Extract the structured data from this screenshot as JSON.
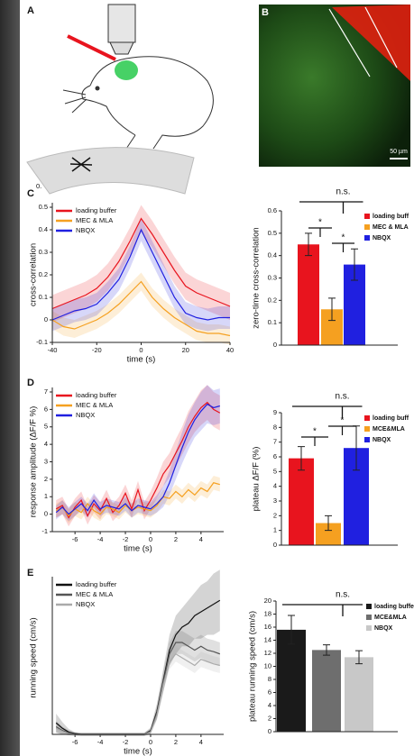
{
  "panel_labels": [
    "A",
    "B",
    "C",
    "D",
    "E"
  ],
  "scale_bar": "50 µm",
  "stray_text": "0.",
  "chart_data": [
    {
      "type": "line",
      "xlabel": "time (s)",
      "ylabel": "cross-correlation",
      "x": [
        -40,
        -35,
        -30,
        -25,
        -20,
        -15,
        -10,
        -5,
        0,
        5,
        10,
        15,
        20,
        25,
        30,
        35,
        40
      ],
      "xlim": [
        -40,
        40
      ],
      "xticks": [
        -40,
        -20,
        0,
        20,
        40
      ],
      "ylim": [
        -0.1,
        0.5
      ],
      "yticks": [
        -0.1,
        0,
        0.1,
        0.2,
        0.3,
        0.4,
        0.5
      ],
      "series": [
        {
          "name": "loading buffer",
          "color": "#e8141e",
          "values": [
            0.05,
            0.07,
            0.09,
            0.11,
            0.14,
            0.19,
            0.26,
            0.35,
            0.45,
            0.38,
            0.3,
            0.22,
            0.15,
            0.12,
            0.1,
            0.08,
            0.06
          ],
          "error": [
            0.06,
            0.06,
            0.06,
            0.06,
            0.06,
            0.06,
            0.06,
            0.06,
            0.06,
            0.06,
            0.06,
            0.06,
            0.06,
            0.06,
            0.06,
            0.06,
            0.06
          ]
        },
        {
          "name": "MEC & MLA",
          "color": "#f5a020",
          "values": [
            0.0,
            -0.03,
            -0.04,
            -0.02,
            0.0,
            0.03,
            0.07,
            0.12,
            0.17,
            0.1,
            0.05,
            0.01,
            -0.02,
            -0.05,
            -0.06,
            -0.06,
            -0.07
          ],
          "error": [
            0.04,
            0.04,
            0.04,
            0.04,
            0.04,
            0.04,
            0.04,
            0.04,
            0.04,
            0.04,
            0.04,
            0.04,
            0.04,
            0.04,
            0.04,
            0.04,
            0.04
          ]
        },
        {
          "name": "NBQX",
          "color": "#2020e0",
          "values": [
            0.0,
            0.02,
            0.04,
            0.05,
            0.07,
            0.12,
            0.18,
            0.28,
            0.4,
            0.3,
            0.2,
            0.1,
            0.03,
            0.01,
            0.0,
            0.01,
            0.01
          ],
          "error": [
            0.05,
            0.05,
            0.05,
            0.05,
            0.05,
            0.05,
            0.05,
            0.05,
            0.05,
            0.05,
            0.05,
            0.05,
            0.05,
            0.05,
            0.05,
            0.05,
            0.05
          ]
        }
      ]
    },
    {
      "type": "bar",
      "ylabel": "zero-time cross-correlation",
      "categories": [
        "loading buff",
        "MEC & MLA",
        "NBQX"
      ],
      "colors": [
        "#e8141e",
        "#f5a020",
        "#2020e0"
      ],
      "values": [
        0.45,
        0.16,
        0.36
      ],
      "error": [
        0.05,
        0.05,
        0.07
      ],
      "ylim": [
        0,
        0.6
      ],
      "yticks": [
        0,
        0.1,
        0.2,
        0.3,
        0.4,
        0.5,
        0.6
      ],
      "annotations": [
        "n.s.",
        "*",
        "*"
      ]
    },
    {
      "type": "line",
      "xlabel": "time (s)",
      "ylabel": "response amplitude (ΔF/F %)",
      "x": [
        -7.5,
        -7,
        -6.5,
        -6,
        -5.5,
        -5,
        -4.5,
        -4,
        -3.5,
        -3,
        -2.5,
        -2,
        -1.5,
        -1,
        -0.5,
        0,
        0.5,
        1,
        1.5,
        2,
        2.5,
        3,
        3.5,
        4,
        4.5,
        5,
        5.5
      ],
      "xlim": [
        -7.8,
        5.8
      ],
      "xticks": [
        -6,
        -4,
        -2,
        0,
        2,
        4
      ],
      "ylim": [
        -1,
        7
      ],
      "yticks": [
        -1,
        0,
        1,
        2,
        3,
        4,
        5,
        6,
        7
      ],
      "series": [
        {
          "name": "loading buffer",
          "color": "#e8141e",
          "values": [
            0.3,
            0.5,
            -0.2,
            0.4,
            0.8,
            -0.1,
            0.6,
            0.2,
            0.9,
            0.1,
            0.5,
            1.2,
            0.3,
            1.4,
            0.2,
            0.8,
            1.5,
            2.3,
            2.8,
            3.5,
            4.2,
            5.0,
            5.6,
            6.1,
            6.4,
            6.0,
            5.8
          ],
          "error": [
            0.5,
            0.5,
            0.5,
            0.5,
            0.5,
            0.5,
            0.5,
            0.5,
            0.5,
            0.5,
            0.5,
            0.5,
            0.5,
            0.5,
            0.5,
            0.5,
            0.6,
            0.7,
            0.7,
            0.8,
            0.8,
            0.9,
            0.9,
            1.0,
            1.0,
            1.0,
            1.0
          ]
        },
        {
          "name": "MEC & MLA",
          "color": "#f5a020",
          "values": [
            0.2,
            0.4,
            -0.1,
            0.3,
            0.1,
            0.6,
            0.2,
            0.0,
            0.4,
            0.3,
            0.1,
            0.5,
            0.2,
            0.4,
            0.3,
            0.2,
            0.5,
            1.0,
            0.9,
            1.3,
            1.0,
            1.4,
            1.1,
            1.5,
            1.3,
            1.8,
            1.7
          ],
          "error": [
            0.4,
            0.4,
            0.4,
            0.4,
            0.4,
            0.4,
            0.4,
            0.4,
            0.4,
            0.4,
            0.4,
            0.4,
            0.4,
            0.4,
            0.4,
            0.4,
            0.4,
            0.4,
            0.4,
            0.4,
            0.4,
            0.4,
            0.4,
            0.4,
            0.4,
            0.4,
            0.4
          ]
        },
        {
          "name": "NBQX",
          "color": "#2020e0",
          "values": [
            0.1,
            0.4,
            0.0,
            0.3,
            0.6,
            0.2,
            0.8,
            0.3,
            0.5,
            0.4,
            0.3,
            0.6,
            0.2,
            0.5,
            0.4,
            0.3,
            0.6,
            1.0,
            1.8,
            2.8,
            3.8,
            4.7,
            5.4,
            5.9,
            6.3,
            6.1,
            6.2
          ],
          "error": [
            0.4,
            0.4,
            0.4,
            0.4,
            0.4,
            0.4,
            0.4,
            0.4,
            0.4,
            0.4,
            0.4,
            0.4,
            0.4,
            0.4,
            0.4,
            0.4,
            0.5,
            0.6,
            0.7,
            0.8,
            0.9,
            1.0,
            1.0,
            1.1,
            1.1,
            1.0,
            1.0
          ]
        }
      ]
    },
    {
      "type": "bar",
      "ylabel": "plateau ΔF/F (%)",
      "categories": [
        "loading buff",
        "MCE&MLA",
        "NBQX"
      ],
      "colors": [
        "#e8141e",
        "#f5a020",
        "#2020e0"
      ],
      "values": [
        5.9,
        1.5,
        6.6
      ],
      "error": [
        0.8,
        0.5,
        1.5
      ],
      "ylim": [
        0,
        9
      ],
      "yticks": [
        0,
        1,
        2,
        3,
        4,
        5,
        6,
        7,
        8,
        9
      ],
      "annotations": [
        "n.s.",
        "*",
        "*"
      ]
    },
    {
      "type": "line",
      "xlabel": "time (s)",
      "ylabel": "running speed (cm/s)",
      "x": [
        -7.5,
        -7,
        -6.5,
        -6,
        -5.5,
        -5,
        -4.5,
        -4,
        -3.5,
        -3,
        -2.5,
        -2,
        -1.5,
        -1,
        -0.5,
        0,
        0.5,
        1,
        1.5,
        2,
        2.5,
        3,
        3.5,
        4,
        4.5,
        5,
        5.5
      ],
      "xlim": [
        -7.8,
        5.8
      ],
      "xticks": [
        -6,
        -4,
        -2,
        0,
        2,
        4
      ],
      "ylim": [
        0,
        20
      ],
      "series": [
        {
          "name": "loading buffer",
          "color": "#111111",
          "values": [
            1.5,
            0.8,
            0.3,
            0.1,
            0,
            0,
            0,
            0,
            0,
            0,
            0,
            0,
            0,
            0,
            0,
            0.5,
            3,
            7,
            11,
            13,
            14,
            14.5,
            15.5,
            16,
            16.5,
            17,
            17.5
          ],
          "error": [
            1.2,
            0.8,
            0.4,
            0.2,
            0.2,
            0.2,
            0.2,
            0.2,
            0.2,
            0.2,
            0.2,
            0.2,
            0.2,
            0.2,
            0.2,
            0.4,
            1.0,
            1.5,
            2.0,
            2.5,
            2.5,
            3.0,
            3.0,
            3.5,
            3.5,
            4.0,
            4.0
          ]
        },
        {
          "name": "MEC & MLA",
          "color": "#555555",
          "values": [
            1.0,
            0.5,
            0.2,
            0,
            0,
            0,
            0,
            0,
            0,
            0,
            0,
            0,
            0,
            0,
            0,
            0.4,
            2.8,
            6.8,
            10.5,
            12,
            12,
            11.5,
            11,
            11.5,
            11,
            10.8,
            10.5
          ],
          "error": [
            0.8,
            0.5,
            0.3,
            0.2,
            0.2,
            0.2,
            0.2,
            0.2,
            0.2,
            0.2,
            0.2,
            0.2,
            0.2,
            0.2,
            0.2,
            0.3,
            0.8,
            1.2,
            1.5,
            1.5,
            1.5,
            1.5,
            1.5,
            1.5,
            1.5,
            1.5,
            1.5
          ]
        },
        {
          "name": "NBQX",
          "color": "#aaaaaa",
          "values": [
            0.8,
            0.4,
            0.1,
            0,
            0,
            0,
            0,
            0,
            0,
            0,
            0,
            0,
            0,
            0,
            0,
            0.3,
            2.5,
            6.5,
            9.5,
            10.5,
            10,
            9.5,
            9,
            9.8,
            9.5,
            9.2,
            9
          ],
          "error": [
            0.6,
            0.4,
            0.2,
            0.2,
            0.2,
            0.2,
            0.2,
            0.2,
            0.2,
            0.2,
            0.2,
            0.2,
            0.2,
            0.2,
            0.2,
            0.3,
            0.6,
            1.0,
            1.0,
            1.0,
            1.0,
            1.0,
            1.0,
            1.0,
            1.0,
            1.0,
            1.0
          ]
        }
      ]
    },
    {
      "type": "bar",
      "ylabel": "plateau running speed (cm/s)",
      "categories": [
        "loading buffe",
        "MCE&MLA",
        "NBQX"
      ],
      "colors": [
        "#1a1a1a",
        "#6e6e6e",
        "#c8c8c8"
      ],
      "values": [
        15.6,
        12.5,
        11.4
      ],
      "error": [
        2.2,
        0.8,
        1.0
      ],
      "ylim": [
        0,
        20
      ],
      "yticks": [
        0,
        2,
        4,
        6,
        8,
        10,
        12,
        14,
        16,
        18,
        20
      ],
      "annotations": [
        "n.s."
      ]
    }
  ]
}
